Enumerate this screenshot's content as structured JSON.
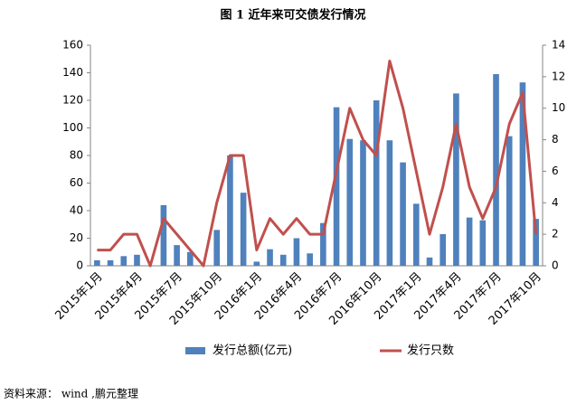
{
  "chart_data": {
    "type": "bar_line",
    "title": "图 1  近年来可交债发行情况",
    "source": "资料来源： wind ,鹏元整理",
    "categories": [
      "2015年1月",
      null,
      null,
      "2015年4月",
      null,
      null,
      "2015年7月",
      null,
      null,
      "2015年10月",
      null,
      null,
      "2016年1月",
      null,
      null,
      "2016年4月",
      null,
      null,
      "2016年7月",
      null,
      null,
      "2016年10月",
      null,
      null,
      "2017年1月",
      null,
      null,
      "2017年4月",
      null,
      null,
      "2017年7月",
      null,
      null,
      "2017年10月"
    ],
    "series": [
      {
        "name": "发行总额(亿元)",
        "color": "#4f81bd",
        "type": "bar",
        "values": [
          4,
          4,
          7,
          8,
          0,
          44,
          15,
          10,
          0,
          26,
          80,
          53,
          3,
          12,
          8,
          20,
          9,
          31,
          115,
          92,
          91,
          120,
          91,
          75,
          45,
          6,
          23,
          125,
          35,
          33,
          139,
          94,
          133,
          34
        ]
      },
      {
        "name": "发行只数",
        "color": "#c0504d",
        "type": "line",
        "axis": "y2",
        "values": [
          1,
          1,
          2,
          2,
          0,
          3,
          2,
          1,
          0,
          4,
          7,
          7,
          1,
          3,
          2,
          3,
          2,
          2,
          6,
          10,
          8,
          7,
          13,
          10,
          6,
          2,
          5,
          9,
          5,
          3,
          5,
          9,
          11,
          2
        ]
      }
    ],
    "ylim": [
      0,
      160
    ],
    "yticks": [
      0,
      20,
      40,
      60,
      80,
      100,
      120,
      140,
      160
    ],
    "y2lim": [
      0,
      14
    ],
    "y2ticks": [
      0,
      2,
      4,
      6,
      8,
      10,
      12,
      14
    ],
    "legend": "bottom"
  }
}
